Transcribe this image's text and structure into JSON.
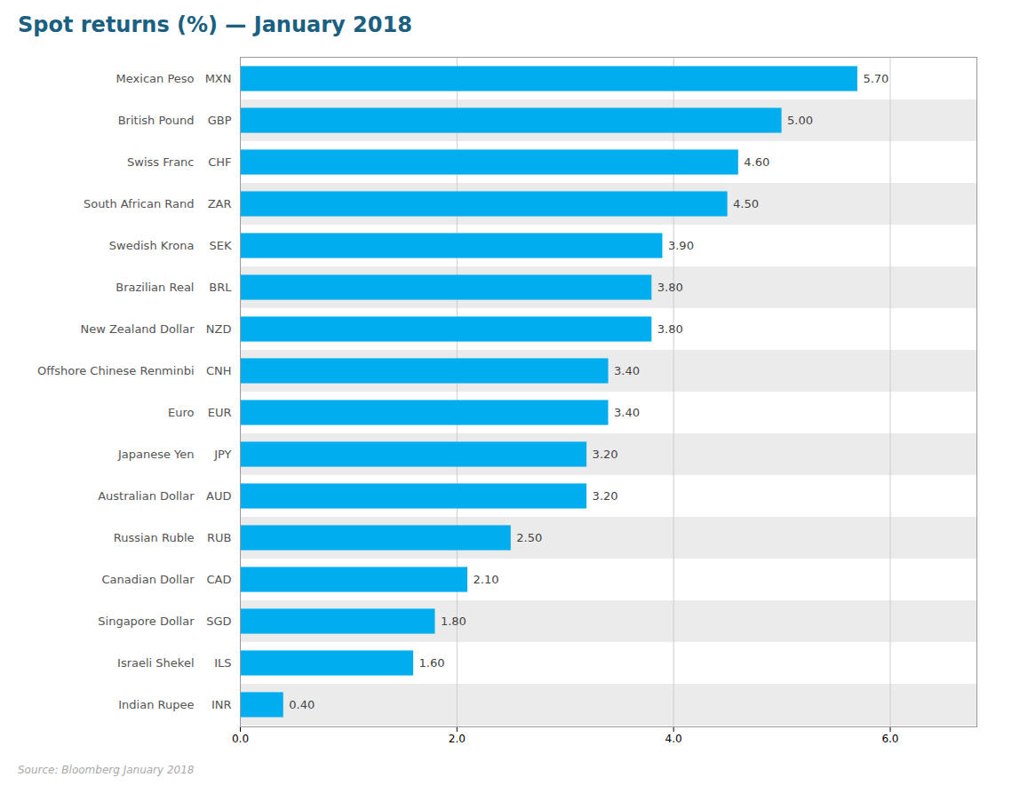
{
  "chart_data": {
    "type": "bar",
    "orientation": "horizontal",
    "title": "Spot returns (%) — January 2018",
    "caption": "Source: Bloomberg January 2018",
    "categories": [
      [
        "Mexican Peso",
        "MXN"
      ],
      [
        "British Pound",
        "GBP"
      ],
      [
        "Swiss Franc",
        "CHF"
      ],
      [
        "South African Rand",
        "ZAR"
      ],
      [
        "Swedish Krona",
        "SEK"
      ],
      [
        "Brazilian Real",
        "BRL"
      ],
      [
        "New Zealand Dollar",
        "NZD"
      ],
      [
        "Offshore Chinese Renminbi",
        "CNH"
      ],
      [
        "Euro",
        "EUR"
      ],
      [
        "Japanese Yen",
        "JPY"
      ],
      [
        "Australian Dollar",
        "AUD"
      ],
      [
        "Russian Ruble",
        "RUB"
      ],
      [
        "Canadian Dollar",
        "CAD"
      ],
      [
        "Singapore Dollar",
        "SGD"
      ],
      [
        "Israeli Shekel",
        "ILS"
      ],
      [
        "Indian Rupee",
        "INR"
      ]
    ],
    "values": [
      5.7,
      5.0,
      4.6,
      4.5,
      3.9,
      3.8,
      3.8,
      3.4,
      3.4,
      3.2,
      3.2,
      2.5,
      2.1,
      1.8,
      1.6,
      0.4
    ],
    "value_labels": [
      "5.70",
      "5.00",
      "4.60",
      "4.50",
      "3.90",
      "3.80",
      "3.80",
      "3.40",
      "3.40",
      "3.20",
      "3.20",
      "2.50",
      "2.10",
      "1.80",
      "1.60",
      "0.40"
    ],
    "data_labels": true,
    "color": "#00aeef",
    "xlim": [
      0,
      6.8
    ],
    "xticks": [
      0,
      2,
      4,
      6
    ],
    "grid": true
  }
}
